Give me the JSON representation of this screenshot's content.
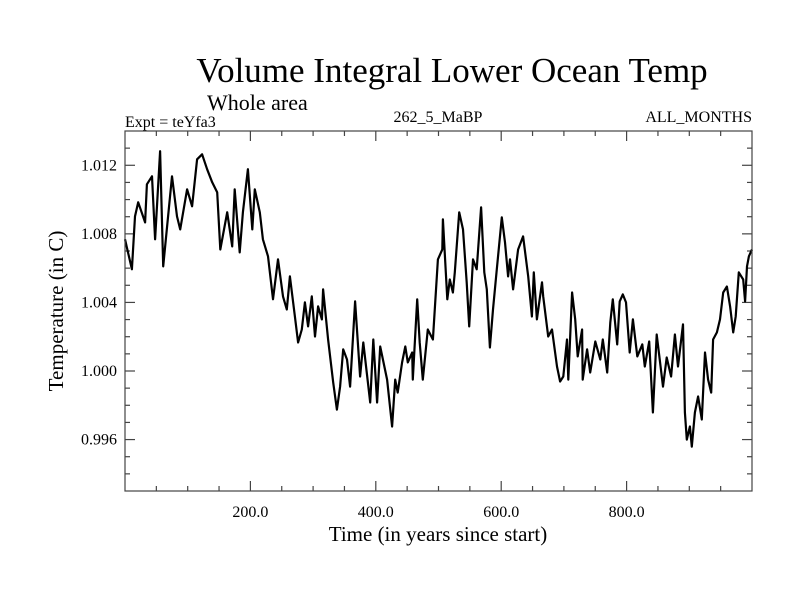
{
  "chart_data": {
    "type": "line",
    "title": "Volume Integral Lower Ocean Temp",
    "subtitle": "Whole area",
    "annotations": {
      "left": "Expt = teYfa3",
      "center": "262_5_MaBP",
      "right": "ALL_MONTHS"
    },
    "xlabel": "Time (in years since start)",
    "ylabel": "Temperature (in C)",
    "xlim": [
      0,
      1000
    ],
    "ylim": [
      0.993,
      1.014
    ],
    "x_ticks": [
      200,
      400,
      600,
      800
    ],
    "x_tick_labels": [
      "200.0",
      "400.0",
      "600.0",
      "800.0"
    ],
    "x_minor_step": 50,
    "y_ticks": [
      0.996,
      1.0,
      1.004,
      1.008,
      1.012
    ],
    "y_tick_labels": [
      "0.996",
      "1.000",
      "1.004",
      "1.008",
      "1.012"
    ],
    "y_minor_step": 0.001,
    "grid": false,
    "line_color": "#000000",
    "series": [
      {
        "name": "Volume Integral Lower Ocean Temp",
        "x": [
          0,
          11,
          16,
          21,
          32,
          35,
          43,
          48,
          56,
          61,
          75,
          83,
          88,
          99,
          107,
          115,
          123,
          131,
          139,
          147,
          152,
          163,
          171,
          175,
          183,
          188,
          196,
          203,
          207,
          215,
          220,
          228,
          236,
          244,
          252,
          258,
          263,
          271,
          276,
          282,
          287,
          292,
          298,
          303,
          308,
          314,
          316,
          324,
          332,
          338,
          343,
          348,
          354,
          359,
          367,
          375,
          380,
          391,
          396,
          402,
          407,
          418,
          426,
          431,
          435,
          442,
          447,
          451,
          458,
          459,
          466,
          470,
          475,
          483,
          491,
          499,
          506,
          507,
          514,
          518,
          523,
          526,
          533,
          539,
          545,
          549,
          555,
          561,
          568,
          573,
          577,
          582,
          587,
          593,
          601,
          606,
          611,
          614,
          619,
          627,
          635,
          643,
          649,
          652,
          657,
          665,
          667,
          675,
          681,
          689,
          694,
          699,
          705,
          707,
          713,
          718,
          722,
          729,
          730,
          737,
          742,
          750,
          758,
          762,
          769,
          774,
          778,
          785,
          789,
          794,
          799,
          805,
          810,
          817,
          825,
          829,
          836,
          842,
          848,
          858,
          864,
          871,
          877,
          882,
          890,
          893,
          896,
          901,
          904,
          909,
          914,
          920,
          925,
          930,
          935,
          938,
          944,
          949,
          954,
          960,
          965,
          970,
          974,
          979,
          986,
          989,
          992,
          995,
          1000
        ],
        "y": [
          1.00768,
          1.00593,
          1.00902,
          1.00984,
          1.00867,
          1.01089,
          1.01136,
          1.00768,
          1.01282,
          1.0061,
          1.01136,
          1.00902,
          1.00826,
          1.0106,
          1.00961,
          1.01235,
          1.01264,
          1.01177,
          1.01101,
          1.01042,
          1.00709,
          1.00926,
          1.00727,
          1.0106,
          1.00692,
          1.00926,
          1.01177,
          1.00826,
          1.0106,
          1.00926,
          1.00768,
          1.00669,
          1.00418,
          1.00651,
          1.00435,
          1.00359,
          1.00552,
          1.00318,
          1.00166,
          1.00242,
          1.004,
          1.0026,
          1.00435,
          1.00201,
          1.00377,
          1.00301,
          1.00476,
          1.00184,
          0.99933,
          0.99775,
          0.99909,
          1.00126,
          1.00067,
          0.99909,
          1.00406,
          0.99968,
          1.00166,
          0.99816,
          1.00184,
          0.99816,
          1.00143,
          0.9995,
          0.99676,
          0.9995,
          0.99874,
          1.0005,
          1.00143,
          1.0005,
          1.00108,
          0.9995,
          1.00418,
          1.00166,
          0.9995,
          1.00242,
          1.00184,
          1.00651,
          1.00709,
          1.00885,
          1.00418,
          1.00534,
          1.00458,
          1.00575,
          1.00926,
          1.00826,
          1.00517,
          1.0026,
          1.00651,
          1.00593,
          1.00955,
          1.00575,
          1.00476,
          1.00137,
          1.00359,
          1.00593,
          1.00896,
          1.0075,
          1.00552,
          1.00651,
          1.00476,
          1.00709,
          1.00785,
          1.00552,
          1.00318,
          1.00575,
          1.00301,
          1.00517,
          1.00435,
          1.00201,
          1.00242,
          1.00026,
          0.99939,
          0.99968,
          1.00184,
          0.9995,
          1.00458,
          1.00301,
          1.00085,
          1.00242,
          0.9995,
          1.00126,
          0.99991,
          1.00172,
          1.00067,
          1.00184,
          0.99991,
          1.00283,
          1.00418,
          1.00155,
          1.00406,
          1.00447,
          1.004,
          1.00108,
          1.00301,
          1.00085,
          1.00155,
          1.00026,
          1.00172,
          0.99758,
          1.00213,
          0.99909,
          1.00079,
          0.99968,
          1.00213,
          1.00026,
          1.00272,
          0.99758,
          0.996,
          0.99676,
          0.99559,
          0.99758,
          0.99851,
          0.99717,
          1.00108,
          0.9995,
          0.99874,
          1.00184,
          1.00225,
          1.00301,
          1.00458,
          1.00493,
          1.00377,
          1.00225,
          1.00318,
          1.00575,
          1.00534,
          1.00406,
          1.0061,
          1.00669,
          1.00709
        ]
      }
    ]
  }
}
